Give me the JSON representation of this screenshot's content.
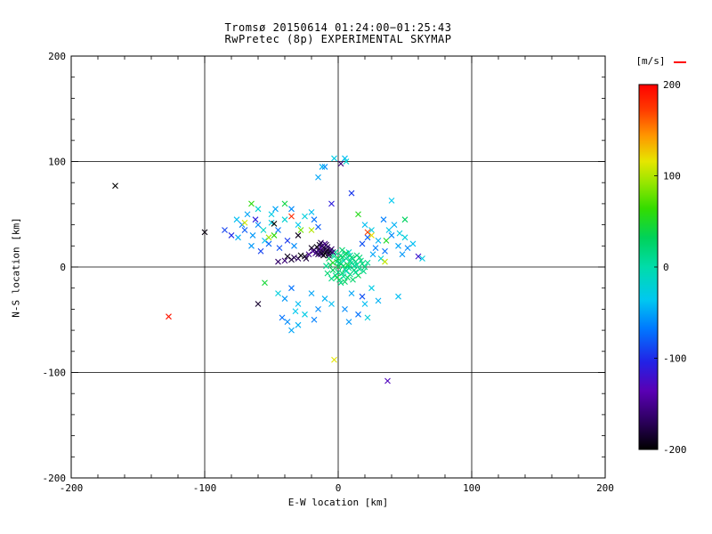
{
  "chart_data": {
    "type": "scatter",
    "marker": "x",
    "title": "Tromsø 20150614 01:24:00−01:25:43",
    "subtitle": "RwPretec (8p) EXPERIMENTAL SKYMAP",
    "xlabel": "E-W location [km]",
    "ylabel": "N-S location [km]",
    "xlim": [
      -200,
      200
    ],
    "ylim": [
      -200,
      200
    ],
    "xticks": [
      -200,
      -100,
      0,
      100,
      200
    ],
    "yticks": [
      -200,
      -100,
      0,
      100,
      200
    ],
    "grid": true,
    "gridlines": [
      -100,
      0,
      100
    ],
    "colorbar": {
      "label": "[m/s]",
      "min": -200,
      "max": 200,
      "ticks": [
        200,
        100,
        0,
        -100,
        -200
      ],
      "stops": [
        [
          0,
          "#000000"
        ],
        [
          0.08,
          "#2d0060"
        ],
        [
          0.16,
          "#5a00b4"
        ],
        [
          0.24,
          "#2222e6"
        ],
        [
          0.33,
          "#0077ff"
        ],
        [
          0.41,
          "#00c8f0"
        ],
        [
          0.5,
          "#00dcaa"
        ],
        [
          0.58,
          "#00d25a"
        ],
        [
          0.66,
          "#33dc00"
        ],
        [
          0.73,
          "#96e600"
        ],
        [
          0.79,
          "#e6e600"
        ],
        [
          0.86,
          "#ff9600"
        ],
        [
          0.93,
          "#ff3c00"
        ],
        [
          1,
          "#ff0000"
        ]
      ]
    },
    "points": [
      [
        2,
        3,
        10
      ],
      [
        5,
        -2,
        20
      ],
      [
        -1,
        5,
        15
      ],
      [
        8,
        1,
        5
      ],
      [
        3,
        -6,
        25
      ],
      [
        -4,
        -3,
        30
      ],
      [
        10,
        4,
        12
      ],
      [
        6,
        8,
        18
      ],
      [
        -2,
        -8,
        8
      ],
      [
        12,
        -3,
        22
      ],
      [
        0,
        0,
        35
      ],
      [
        4,
        6,
        -5
      ],
      [
        9,
        -7,
        15
      ],
      [
        -6,
        2,
        28
      ],
      [
        1,
        -12,
        20
      ],
      [
        14,
        2,
        10
      ],
      [
        7,
        -10,
        30
      ],
      [
        -3,
        10,
        5
      ],
      [
        11,
        8,
        25
      ],
      [
        2,
        -15,
        18
      ],
      [
        16,
        -2,
        12
      ],
      [
        5,
        12,
        8
      ],
      [
        -8,
        -6,
        22
      ],
      [
        13,
        5,
        15
      ],
      [
        0,
        8,
        40
      ],
      [
        6,
        -4,
        -10
      ],
      [
        18,
        3,
        20
      ],
      [
        3,
        9,
        28
      ],
      [
        -5,
        -11,
        15
      ],
      [
        9,
        11,
        10
      ],
      [
        15,
        -8,
        35
      ],
      [
        1,
        4,
        22
      ],
      [
        20,
        0,
        18
      ],
      [
        -2,
        14,
        12
      ],
      [
        7,
        2,
        45
      ],
      [
        11,
        -12,
        25
      ],
      [
        4,
        -9,
        8
      ],
      [
        17,
        6,
        15
      ],
      [
        -7,
        8,
        30
      ],
      [
        2,
        11,
        20
      ],
      [
        8,
        14,
        -15
      ],
      [
        13,
        -5,
        10
      ],
      [
        -4,
        4,
        50
      ],
      [
        10,
        9,
        22
      ],
      [
        5,
        -14,
        28
      ],
      [
        19,
        -4,
        15
      ],
      [
        0,
        -5,
        18
      ],
      [
        6,
        13,
        35
      ],
      [
        -9,
        1,
        12
      ],
      [
        12,
        1,
        8
      ],
      [
        3,
        16,
        25
      ],
      [
        16,
        9,
        20
      ],
      [
        -1,
        -10,
        40
      ],
      [
        8,
        -1,
        15
      ],
      [
        22,
        4,
        10
      ],
      [
        4,
        1,
        30
      ],
      [
        -6,
        12,
        18
      ],
      [
        14,
        11,
        22
      ],
      [
        9,
        6,
        5
      ],
      [
        -12,
        15,
        -180
      ],
      [
        -10,
        13,
        -200
      ],
      [
        -14,
        17,
        -160
      ],
      [
        -8,
        16,
        -190
      ],
      [
        -16,
        14,
        -170
      ],
      [
        -11,
        18,
        -200
      ],
      [
        -13,
        12,
        -150
      ],
      [
        -9,
        14,
        -185
      ],
      [
        -15,
        16,
        -175
      ],
      [
        -7,
        13,
        -195
      ],
      [
        -12,
        20,
        -165
      ],
      [
        -10,
        17,
        -180
      ],
      [
        -17,
        13,
        -155
      ],
      [
        -8,
        19,
        -170
      ],
      [
        -14,
        21,
        -190
      ],
      [
        -11,
        11,
        -200
      ],
      [
        -18,
        16,
        -160
      ],
      [
        -6,
        15,
        -185
      ],
      [
        -13,
        18,
        -145
      ],
      [
        -9,
        21,
        -175
      ],
      [
        -16,
        19,
        -195
      ],
      [
        -5,
        17,
        -165
      ],
      [
        -12,
        13,
        -185
      ],
      [
        -19,
        15,
        -150
      ],
      [
        -7,
        11,
        -170
      ],
      [
        -15,
        12,
        -180
      ],
      [
        -10,
        22,
        -155
      ],
      [
        -20,
        18,
        -190
      ],
      [
        -4,
        14,
        -160
      ],
      [
        -13,
        23,
        -175
      ],
      [
        -25,
        10,
        -190
      ],
      [
        -30,
        8,
        -170
      ],
      [
        -35,
        7,
        -185
      ],
      [
        -40,
        6,
        -160
      ],
      [
        -22,
        12,
        -150
      ],
      [
        -28,
        11,
        -200
      ],
      [
        -33,
        9,
        -175
      ],
      [
        -45,
        5,
        -165
      ],
      [
        -38,
        10,
        -190
      ],
      [
        -24,
        8,
        -180
      ],
      [
        -60,
        40,
        -60
      ],
      [
        -55,
        25,
        -40
      ],
      [
        -70,
        35,
        -80
      ],
      [
        -50,
        50,
        -30
      ],
      [
        -65,
        20,
        -55
      ],
      [
        -45,
        35,
        -70
      ],
      [
        -75,
        28,
        -45
      ],
      [
        -40,
        45,
        -20
      ],
      [
        -58,
        15,
        -90
      ],
      [
        -35,
        55,
        -60
      ],
      [
        -48,
        30,
        60
      ],
      [
        -62,
        45,
        -110
      ],
      [
        -30,
        40,
        -35
      ],
      [
        -52,
        22,
        -75
      ],
      [
        -68,
        50,
        -50
      ],
      [
        -25,
        48,
        -25
      ],
      [
        -44,
        18,
        -85
      ],
      [
        -72,
        40,
        -65
      ],
      [
        -20,
        52,
        -40
      ],
      [
        -56,
        35,
        -15
      ],
      [
        -38,
        25,
        -95
      ],
      [
        -28,
        35,
        80
      ],
      [
        -64,
        30,
        -55
      ],
      [
        -18,
        45,
        -70
      ],
      [
        -50,
        42,
        -30
      ],
      [
        -33,
        20,
        -60
      ],
      [
        -76,
        45,
        -40
      ],
      [
        -15,
        38,
        -80
      ],
      [
        -47,
        55,
        -50
      ],
      [
        -60,
        55,
        -20
      ],
      [
        30,
        25,
        -45
      ],
      [
        40,
        30,
        -60
      ],
      [
        25,
        35,
        -30
      ],
      [
        35,
        15,
        -70
      ],
      [
        45,
        20,
        -50
      ],
      [
        20,
        40,
        -40
      ],
      [
        50,
        28,
        -25
      ],
      [
        28,
        18,
        -65
      ],
      [
        38,
        35,
        -35
      ],
      [
        48,
        12,
        -55
      ],
      [
        22,
        28,
        -75
      ],
      [
        42,
        40,
        -45
      ],
      [
        32,
        8,
        -20
      ],
      [
        52,
        18,
        -60
      ],
      [
        18,
        22,
        -85
      ],
      [
        36,
        25,
        50
      ],
      [
        46,
        32,
        -30
      ],
      [
        26,
        12,
        -50
      ],
      [
        56,
        22,
        -40
      ],
      [
        34,
        45,
        -65
      ],
      [
        -20,
        -25,
        -50
      ],
      [
        -30,
        -35,
        -40
      ],
      [
        -15,
        -40,
        -60
      ],
      [
        -35,
        -20,
        -70
      ],
      [
        -25,
        -45,
        -30
      ],
      [
        -40,
        -30,
        -55
      ],
      [
        -10,
        -30,
        -45
      ],
      [
        -45,
        -25,
        -25
      ],
      [
        -18,
        -50,
        -65
      ],
      [
        -32,
        -42,
        -35
      ],
      [
        10,
        -25,
        -50
      ],
      [
        20,
        -35,
        -40
      ],
      [
        5,
        -40,
        -60
      ],
      [
        25,
        -20,
        -30
      ],
      [
        15,
        -45,
        -70
      ],
      [
        30,
        -32,
        -45
      ],
      [
        8,
        -52,
        -55
      ],
      [
        22,
        -48,
        -25
      ],
      [
        -5,
        -35,
        -40
      ],
      [
        18,
        -28,
        -85
      ],
      [
        -38,
        -52,
        -60
      ],
      [
        -30,
        -55,
        -45
      ],
      [
        -42,
        -48,
        -70
      ],
      [
        -35,
        -60,
        -50
      ],
      [
        -70,
        42,
        110
      ],
      [
        -52,
        28,
        95
      ],
      [
        25,
        30,
        120
      ],
      [
        -3,
        -88,
        115
      ],
      [
        -20,
        35,
        100
      ],
      [
        35,
        5,
        105
      ],
      [
        -65,
        60,
        60
      ],
      [
        -40,
        60,
        40
      ],
      [
        15,
        50,
        55
      ],
      [
        -55,
        -15,
        45
      ],
      [
        50,
        45,
        30
      ],
      [
        -127,
        -47,
        190
      ],
      [
        -35,
        48,
        180
      ],
      [
        22,
        33,
        170
      ],
      [
        -167,
        77,
        -200
      ],
      [
        -100,
        33,
        -195
      ],
      [
        37,
        -108,
        -130
      ],
      [
        -48,
        41,
        -200
      ],
      [
        -30,
        30,
        -190
      ],
      [
        -60,
        -35,
        -185
      ],
      [
        -80,
        30,
        -100
      ],
      [
        -85,
        35,
        -90
      ],
      [
        60,
        10,
        -120
      ],
      [
        -5,
        60,
        -110
      ],
      [
        10,
        70,
        -95
      ],
      [
        -10,
        95,
        -60
      ],
      [
        5,
        103,
        -40
      ],
      [
        -15,
        85,
        -50
      ],
      [
        -3,
        103,
        -30
      ],
      [
        -12,
        95,
        -45
      ],
      [
        2,
        98,
        -160
      ],
      [
        6,
        100,
        -20
      ],
      [
        63,
        8,
        -30
      ],
      [
        45,
        -28,
        -40
      ],
      [
        40,
        63,
        -35
      ]
    ]
  }
}
